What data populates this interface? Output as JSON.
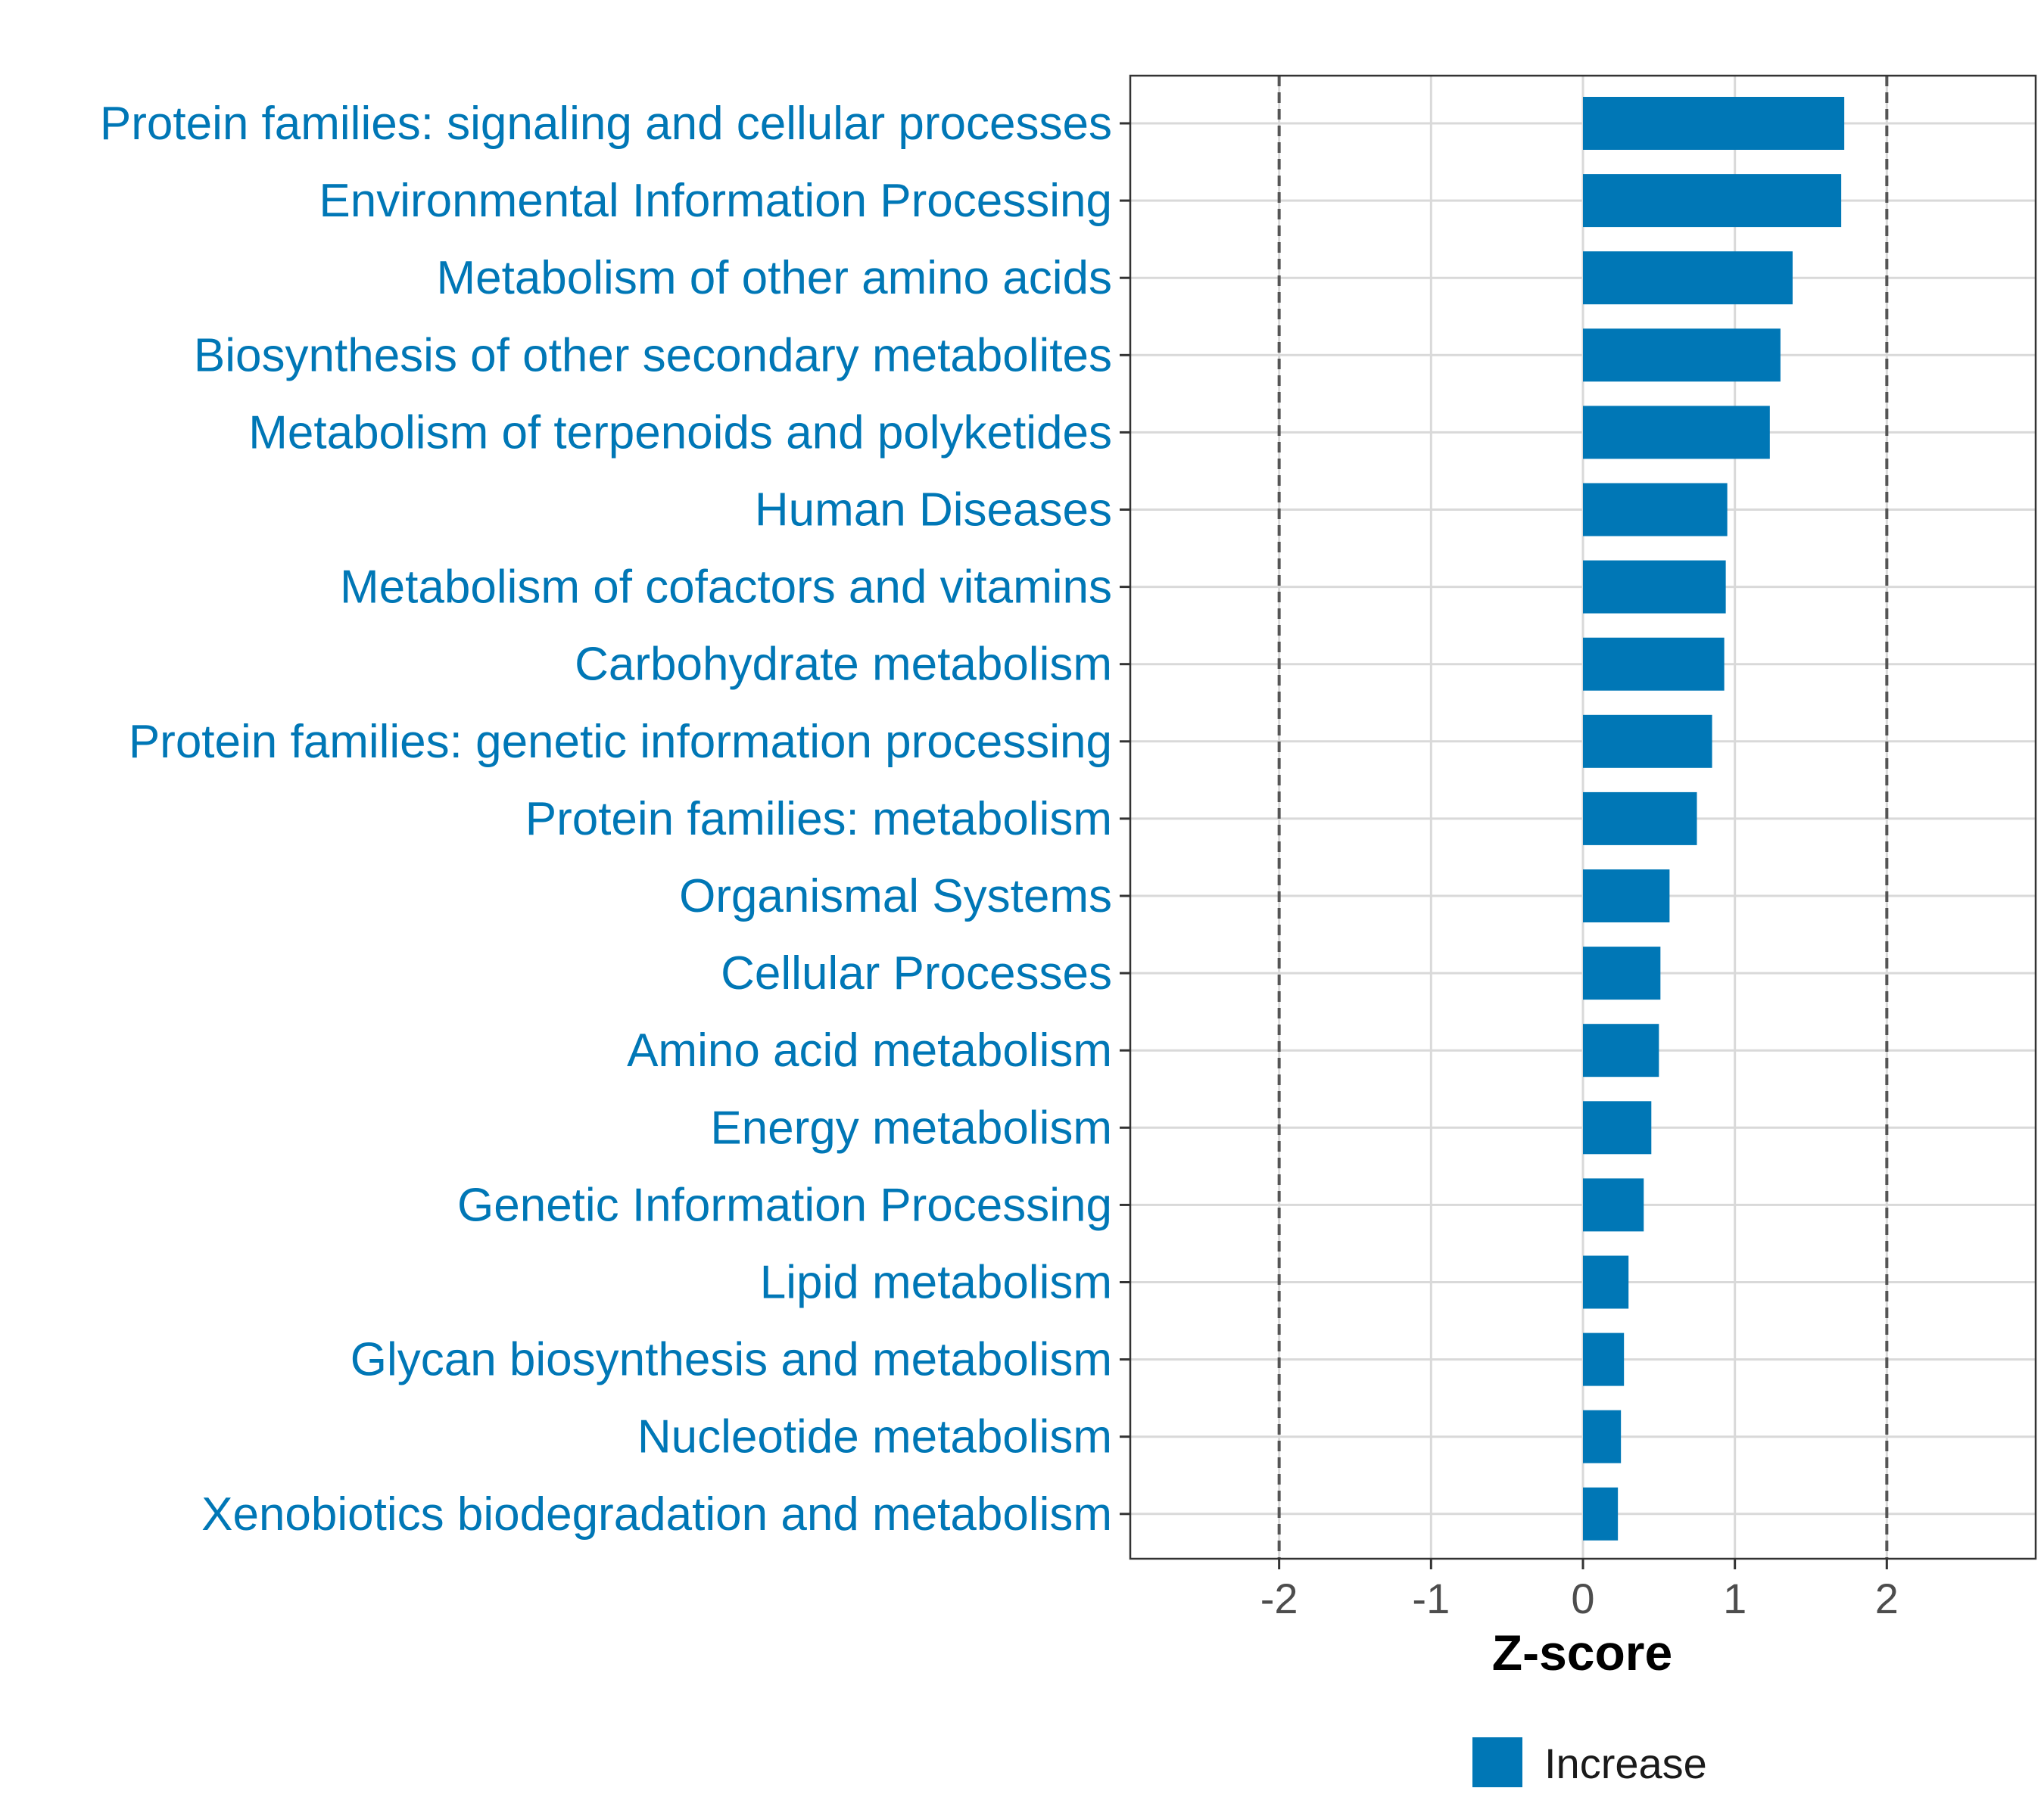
{
  "chart_data": {
    "type": "bar",
    "orientation": "horizontal",
    "categories": [
      "Protein families: signaling and cellular processes",
      "Environmental Information Processing",
      "Metabolism of other amino acids",
      "Biosynthesis of other secondary metabolites",
      "Metabolism of terpenoids and polyketides",
      "Human Diseases",
      "Metabolism of cofactors and vitamins",
      "Carbohydrate metabolism",
      "Protein families: genetic information processing",
      "Protein families: metabolism",
      "Organismal Systems",
      "Cellular Processes",
      "Amino acid metabolism",
      "Energy metabolism",
      "Genetic Information Processing",
      "Lipid metabolism",
      "Glycan biosynthesis and metabolism",
      "Nucleotide metabolism",
      "Xenobiotics biodegradation and metabolism"
    ],
    "series": [
      {
        "name": "Increase",
        "values": [
          1.72,
          1.7,
          1.38,
          1.3,
          1.23,
          0.95,
          0.94,
          0.93,
          0.85,
          0.75,
          0.57,
          0.51,
          0.5,
          0.45,
          0.4,
          0.3,
          0.27,
          0.25,
          0.23
        ]
      }
    ],
    "xlabel": "Z-score",
    "ylabel": "",
    "xlim": [
      -2.98,
      2.98
    ],
    "xticks": [
      -2,
      -1,
      0,
      1,
      2
    ],
    "xtick_labels": [
      "-2",
      "-1",
      "0",
      "1",
      "2"
    ],
    "reference_lines": [
      -2,
      2
    ],
    "grid": true,
    "legend": {
      "position": "bottom",
      "entries": [
        "Increase"
      ]
    },
    "colors": {
      "bar": "#0077b6",
      "category_label": "#0077b6",
      "grid": "#d9d9d9",
      "reference_line": "#555555",
      "panel_border": "#333333"
    }
  }
}
